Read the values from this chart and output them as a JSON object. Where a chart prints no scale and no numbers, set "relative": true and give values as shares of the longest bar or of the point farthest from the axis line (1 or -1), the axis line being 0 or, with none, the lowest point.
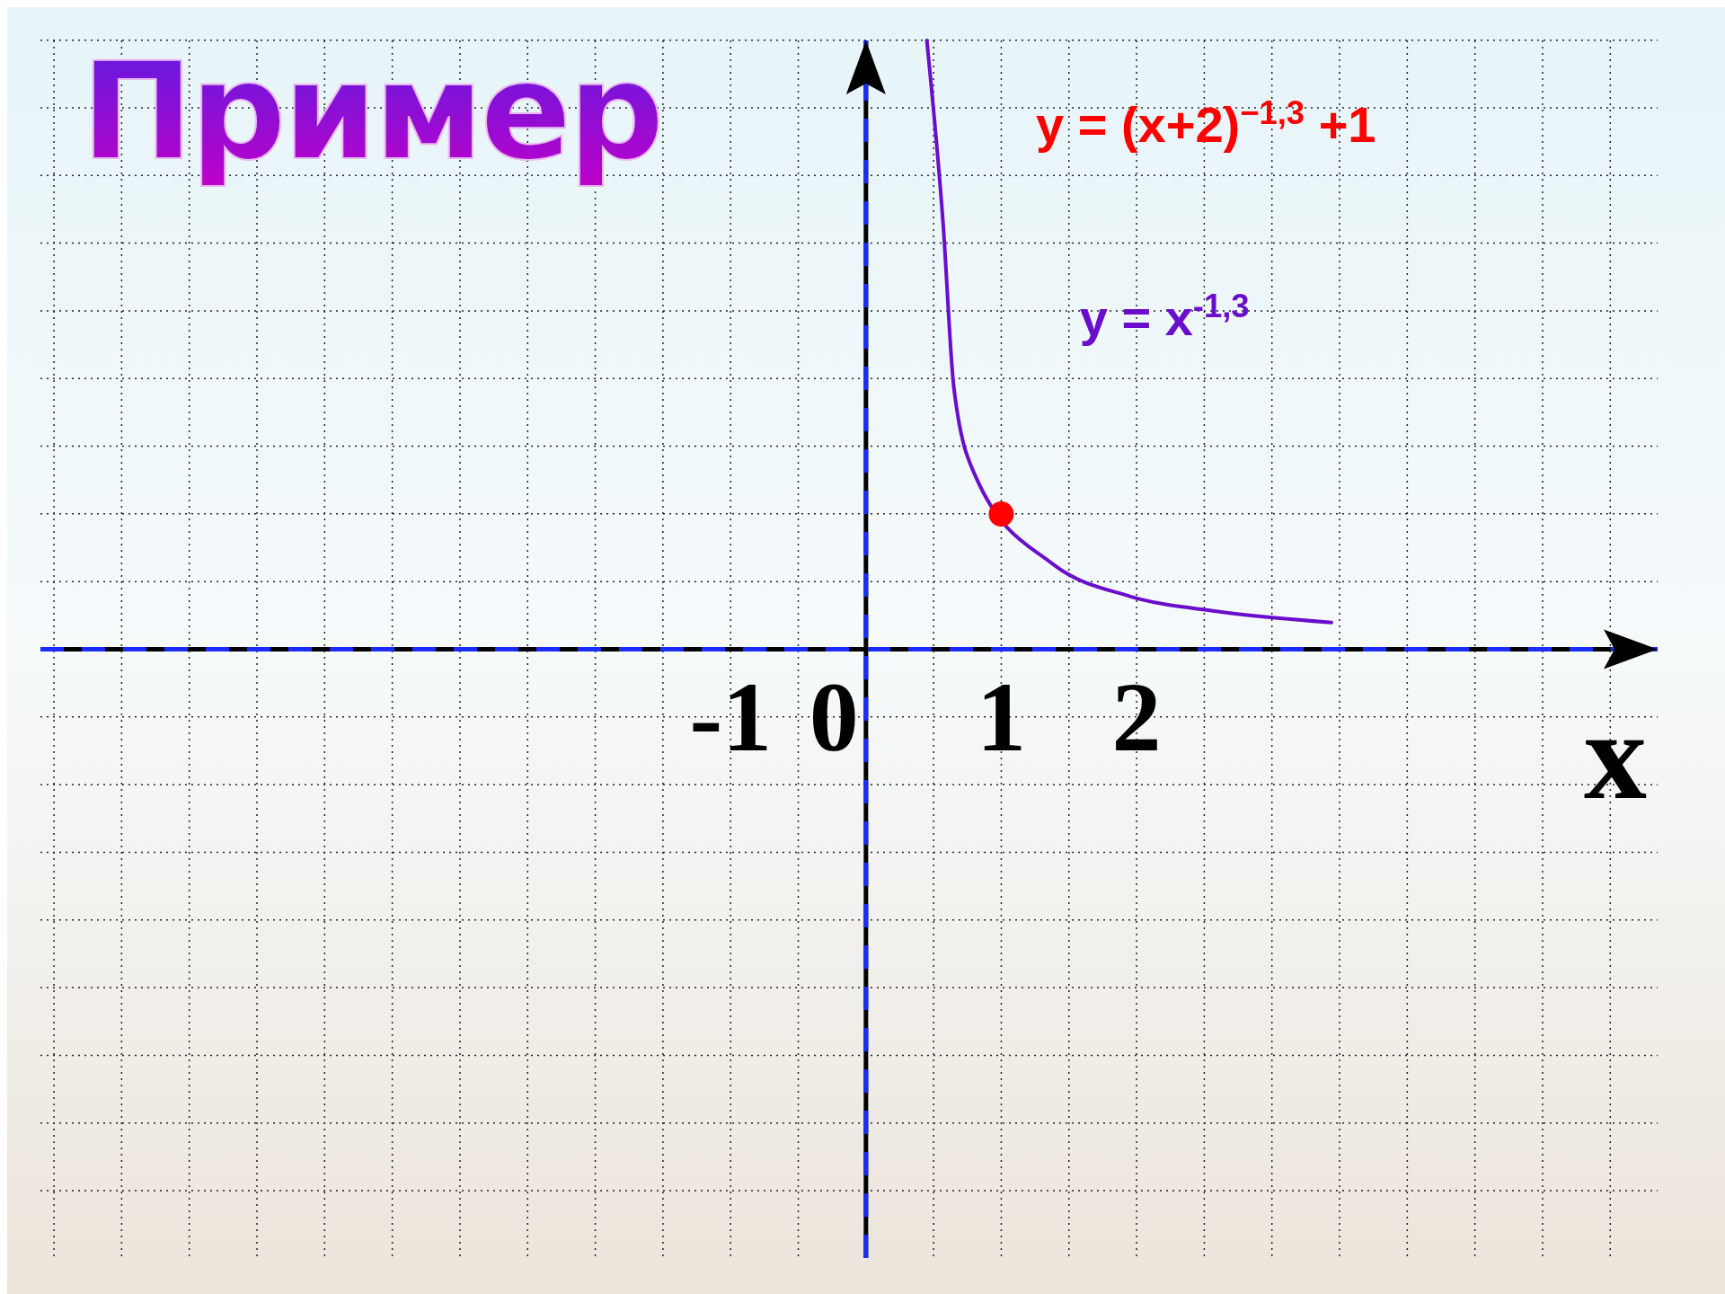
{
  "chart_data": {
    "type": "line",
    "title": "Пример",
    "xlabel": "x",
    "annotations": [
      "y = (x+2)$^{−1,3}$ +1"
    ],
    "xlim": [
      -6.1,
      5.85
    ],
    "relative": true,
    "xticks": [
      {
        "value": -6,
        "label": null
      },
      {
        "value": -5.5,
        "label": null
      },
      {
        "value": -5,
        "label": null
      },
      {
        "value": -4.5,
        "label": null
      },
      {
        "value": -4,
        "label": null
      },
      {
        "value": -3.5,
        "label": null
      },
      {
        "value": -3,
        "label": null
      },
      {
        "value": -2.5,
        "label": null
      },
      {
        "value": -2,
        "label": null
      },
      {
        "value": -1.5,
        "label": null
      },
      -1,
      {
        "value": -0.5,
        "label": null
      },
      0,
      {
        "value": 0.5,
        "label": null
      },
      1,
      {
        "value": 1.5,
        "label": null
      },
      2,
      {
        "value": 2.5,
        "label": null
      },
      {
        "value": 3,
        "label": null
      },
      {
        "value": 3.5,
        "label": null
      },
      {
        "value": 4,
        "label": null
      },
      {
        "value": 4.5,
        "label": null
      },
      {
        "value": 5,
        "label": null
      },
      {
        "value": 5.5,
        "label": null
      }
    ],
    "tick_labels": "x",
    "grid": true,
    "ref_lines": [
      {
        "axis": "x",
        "value": 0,
        "color": "#1a2cff",
        "line_style": "dashed"
      }
    ],
    "line_style": "solid",
    "marker": "none",
    "series": [
      {
        "name": "y = x$^{-1,3}$",
        "color": "#6a0dcc",
        "x": [
          0.45,
          0.57,
          0.65,
          0.81,
          1.38,
          1.95,
          2.6,
          3.44
        ],
        "values": [
          1,
          0.7,
          0.429,
          0.284,
          0.14,
          0.087,
          0.062,
          0.044
        ]
      },
      {
        "type": "scatter",
        "marker": "circle",
        "color": "#ff0000",
        "x": [
          1
        ],
        "values": [
          0.222
        ]
      }
    ]
  }
}
